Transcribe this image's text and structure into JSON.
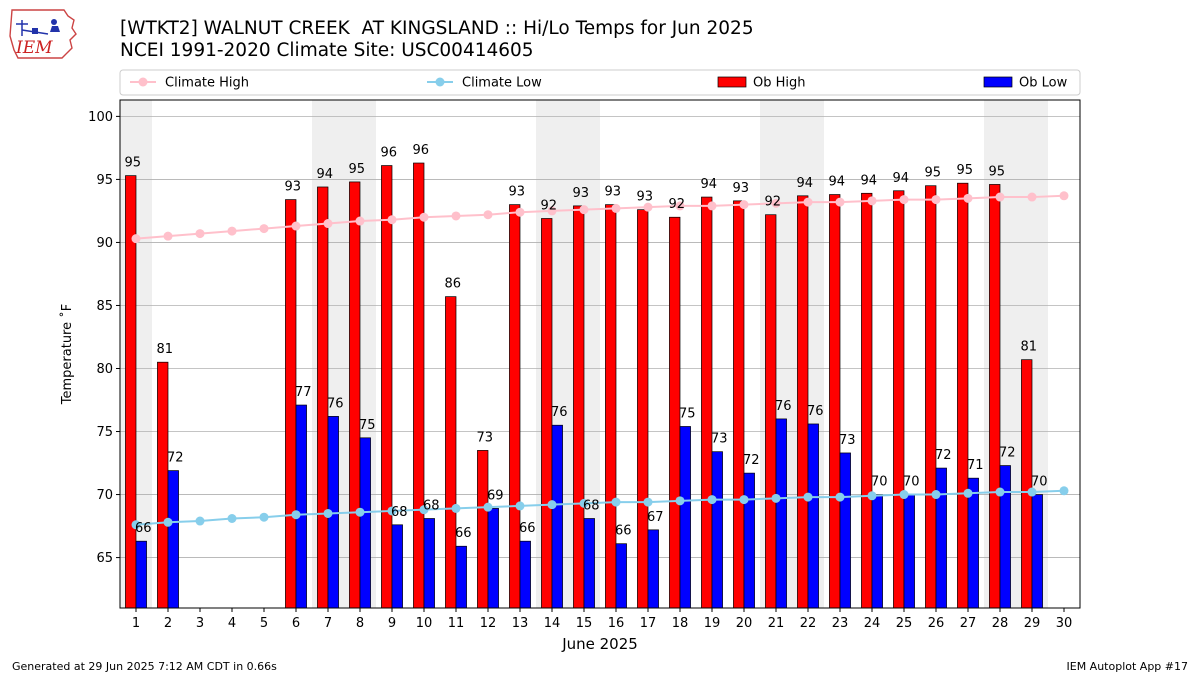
{
  "header": {
    "title": "[WTKT2] WALNUT CREEK  AT KINGSLAND :: Hi/Lo Temps for Jun 2025",
    "subtitle": "NCEI 1991-2020 Climate Site: USC00414605",
    "logo_text": "IEM"
  },
  "footer": {
    "generated": "Generated at 29 Jun 2025 7:12 AM CDT in 0.66s",
    "app": "IEM Autoplot App #17"
  },
  "colors": {
    "climate_high": "#ffc0cb",
    "climate_low": "#87ceeb",
    "ob_high": "#ff0000",
    "ob_low": "#0000ff",
    "weekend_band": "#efefef",
    "grid": "#b0b0b0"
  },
  "chart_data": {
    "type": "bar",
    "xlabel": "June 2025",
    "ylabel": "Temperature ˚F",
    "xlim": [
      0.5,
      30.5
    ],
    "ylim": [
      61,
      101.3
    ],
    "yticks": [
      65,
      70,
      75,
      80,
      85,
      90,
      95,
      100
    ],
    "grid": "horizontal",
    "legend_position": "top",
    "weekend_days": [
      1,
      7,
      8,
      14,
      15,
      21,
      22,
      28,
      29
    ],
    "x": [
      1,
      2,
      3,
      4,
      5,
      6,
      7,
      8,
      9,
      10,
      11,
      12,
      13,
      14,
      15,
      16,
      17,
      18,
      19,
      20,
      21,
      22,
      23,
      24,
      25,
      26,
      27,
      28,
      29,
      30
    ],
    "series": [
      {
        "name": "Climate High",
        "kind": "line",
        "values": [
          90.3,
          90.5,
          90.7,
          90.9,
          91.1,
          91.3,
          91.5,
          91.7,
          91.8,
          92.0,
          92.1,
          92.2,
          92.4,
          92.5,
          92.6,
          92.7,
          92.8,
          92.9,
          92.9,
          93.0,
          93.1,
          93.2,
          93.2,
          93.3,
          93.4,
          93.4,
          93.5,
          93.6,
          93.6,
          93.7
        ]
      },
      {
        "name": "Climate Low",
        "kind": "line",
        "values": [
          67.6,
          67.8,
          67.9,
          68.1,
          68.2,
          68.4,
          68.5,
          68.6,
          68.7,
          68.8,
          68.9,
          69.0,
          69.1,
          69.2,
          69.3,
          69.4,
          69.4,
          69.5,
          69.6,
          69.6,
          69.7,
          69.8,
          69.8,
          69.9,
          70.0,
          70.0,
          70.1,
          70.2,
          70.2,
          70.3
        ]
      },
      {
        "name": "Ob High",
        "kind": "bar",
        "values": [
          95.3,
          80.5,
          null,
          null,
          null,
          93.4,
          94.4,
          94.8,
          96.1,
          96.3,
          85.7,
          73.5,
          93.0,
          91.9,
          92.9,
          93.0,
          92.6,
          92.0,
          93.6,
          93.3,
          92.2,
          93.7,
          93.8,
          93.9,
          94.1,
          94.5,
          94.7,
          94.6,
          80.7,
          null
        ],
        "labels": [
          "95",
          "81",
          null,
          null,
          null,
          "93",
          "94",
          "95",
          "96",
          "96",
          "86",
          "73",
          "93",
          "92",
          "93",
          "93",
          "93",
          "92",
          "94",
          "93",
          "92",
          "94",
          "94",
          "94",
          "94",
          "95",
          "95",
          "95",
          "81",
          null
        ]
      },
      {
        "name": "Ob Low",
        "kind": "bar",
        "values": [
          66.3,
          71.9,
          null,
          null,
          null,
          77.1,
          76.2,
          74.5,
          67.6,
          68.1,
          65.9,
          68.9,
          66.3,
          75.5,
          68.1,
          66.1,
          67.2,
          75.4,
          73.4,
          71.7,
          76.0,
          75.6,
          73.3,
          70.0,
          70.0,
          72.1,
          71.3,
          72.3,
          70.0,
          null
        ],
        "labels": [
          "66",
          "72",
          null,
          null,
          null,
          "77",
          "76",
          "75",
          "68",
          "68",
          "66",
          "69",
          "66",
          "76",
          "68",
          "66",
          "67",
          "75",
          "73",
          "72",
          "76",
          "76",
          "73",
          "70",
          "70",
          "72",
          "71",
          "72",
          "70",
          null
        ]
      }
    ]
  }
}
